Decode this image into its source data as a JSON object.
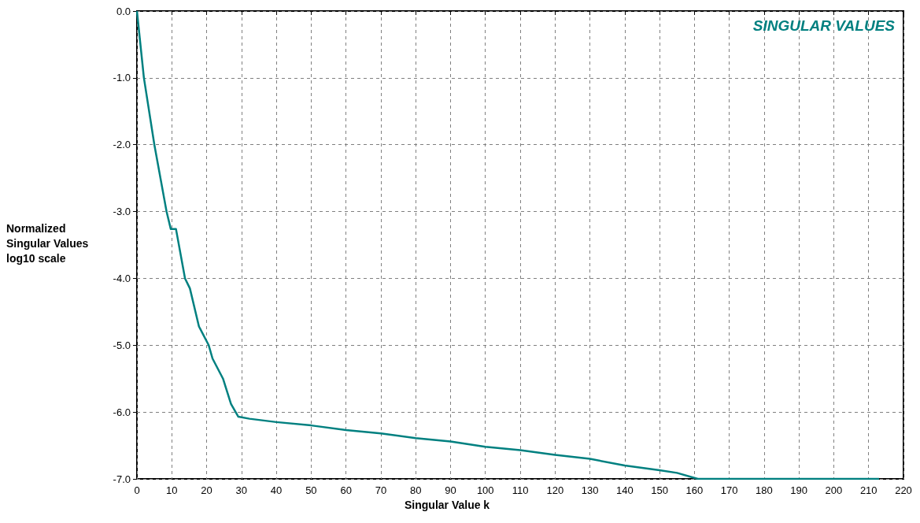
{
  "chart_data": {
    "type": "line",
    "xlabel": "Singular Value k",
    "ylabel": "Normalized Singular Values log10 scale",
    "series": [
      {
        "name": "SINGULAR VALUES",
        "color": "#008080",
        "x": [
          0,
          2,
          5,
          8.5,
          9.7,
          11.2,
          13.8,
          15.2,
          17.8,
          20.6,
          21.7,
          24.7,
          27,
          29.1,
          32.3,
          40,
          50,
          60,
          70,
          80,
          90,
          100,
          110,
          120,
          130,
          140,
          150,
          155,
          161,
          213
        ],
        "values": [
          0,
          -1,
          -2,
          -3,
          -3.26,
          -3.26,
          -4,
          -4.15,
          -4.72,
          -5,
          -5.2,
          -5.5,
          -5.88,
          -6.07,
          -6.1,
          -6.15,
          -6.2,
          -6.27,
          -6.32,
          -6.39,
          -6.44,
          -6.52,
          -6.57,
          -6.64,
          -6.7,
          -6.8,
          -6.87,
          -6.91,
          -7,
          -7
        ]
      }
    ],
    "xlim": [
      0,
      220
    ],
    "xticks": [
      0,
      10,
      20,
      30,
      40,
      50,
      60,
      70,
      80,
      90,
      100,
      110,
      120,
      130,
      140,
      150,
      160,
      170,
      180,
      190,
      200,
      210,
      220
    ],
    "ylim": [
      -7,
      0
    ],
    "yticks": [
      {
        "value": -7,
        "label": "-7.0"
      },
      {
        "value": -6,
        "label": "-6.0"
      },
      {
        "value": -5,
        "label": "-5.0"
      },
      {
        "value": -4,
        "label": "-4.0"
      },
      {
        "value": -3,
        "label": "-3.0"
      },
      {
        "value": -2,
        "label": "-2.0"
      },
      {
        "value": -1,
        "label": "-1.0"
      },
      {
        "value": 0,
        "label": "0.0"
      }
    ],
    "grid": true,
    "legend": "top right",
    "marker": "none",
    "line_style": "solid"
  }
}
